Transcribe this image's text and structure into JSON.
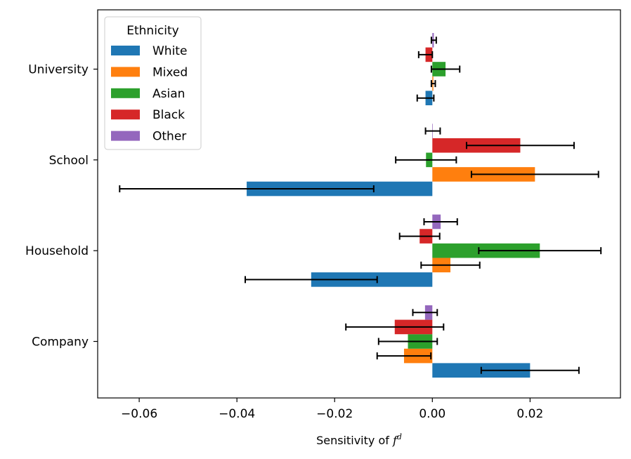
{
  "chart_data": {
    "type": "bar",
    "orientation": "horizontal",
    "title": "",
    "xlabel_main": "Sensitivity of ",
    "xlabel_math": "f",
    "xlabel_sup": "d",
    "ylabel": "",
    "xlim": [
      -0.0685,
      0.0385
    ],
    "xticks": [
      -0.06,
      -0.04,
      -0.02,
      0.0,
      0.02
    ],
    "xtick_labels": [
      "−0.06",
      "−0.04",
      "−0.02",
      "0.00",
      "0.02"
    ],
    "categories": [
      "Company",
      "Household",
      "School",
      "University"
    ],
    "legend": {
      "title": "Ethnicity",
      "location": "upper-left"
    },
    "series": [
      {
        "name": "White",
        "color": "#1f77b4",
        "values": [
          0.02,
          -0.0248,
          -0.038,
          -0.0014
        ],
        "errors": [
          0.01,
          0.0135,
          0.026,
          0.0017
        ]
      },
      {
        "name": "Mixed",
        "color": "#ff7f0e",
        "values": [
          -0.0058,
          0.0037,
          0.021,
          0.0002
        ],
        "errors": [
          0.0055,
          0.006,
          0.013,
          0.0004
        ]
      },
      {
        "name": "Asian",
        "color": "#2ca02c",
        "values": [
          -0.005,
          0.022,
          -0.0013,
          0.0027
        ],
        "errors": [
          0.006,
          0.0125,
          0.0062,
          0.0029
        ]
      },
      {
        "name": "Black",
        "color": "#d62728",
        "values": [
          -0.0077,
          -0.0026,
          0.018,
          -0.0014
        ],
        "errors": [
          0.01,
          0.0041,
          0.011,
          0.0014
        ]
      },
      {
        "name": "Other",
        "color": "#9467bd",
        "values": [
          -0.0015,
          0.0017,
          0.0001,
          0.0003
        ],
        "errors": [
          0.0025,
          0.0034,
          0.0015,
          0.0005
        ]
      }
    ]
  }
}
